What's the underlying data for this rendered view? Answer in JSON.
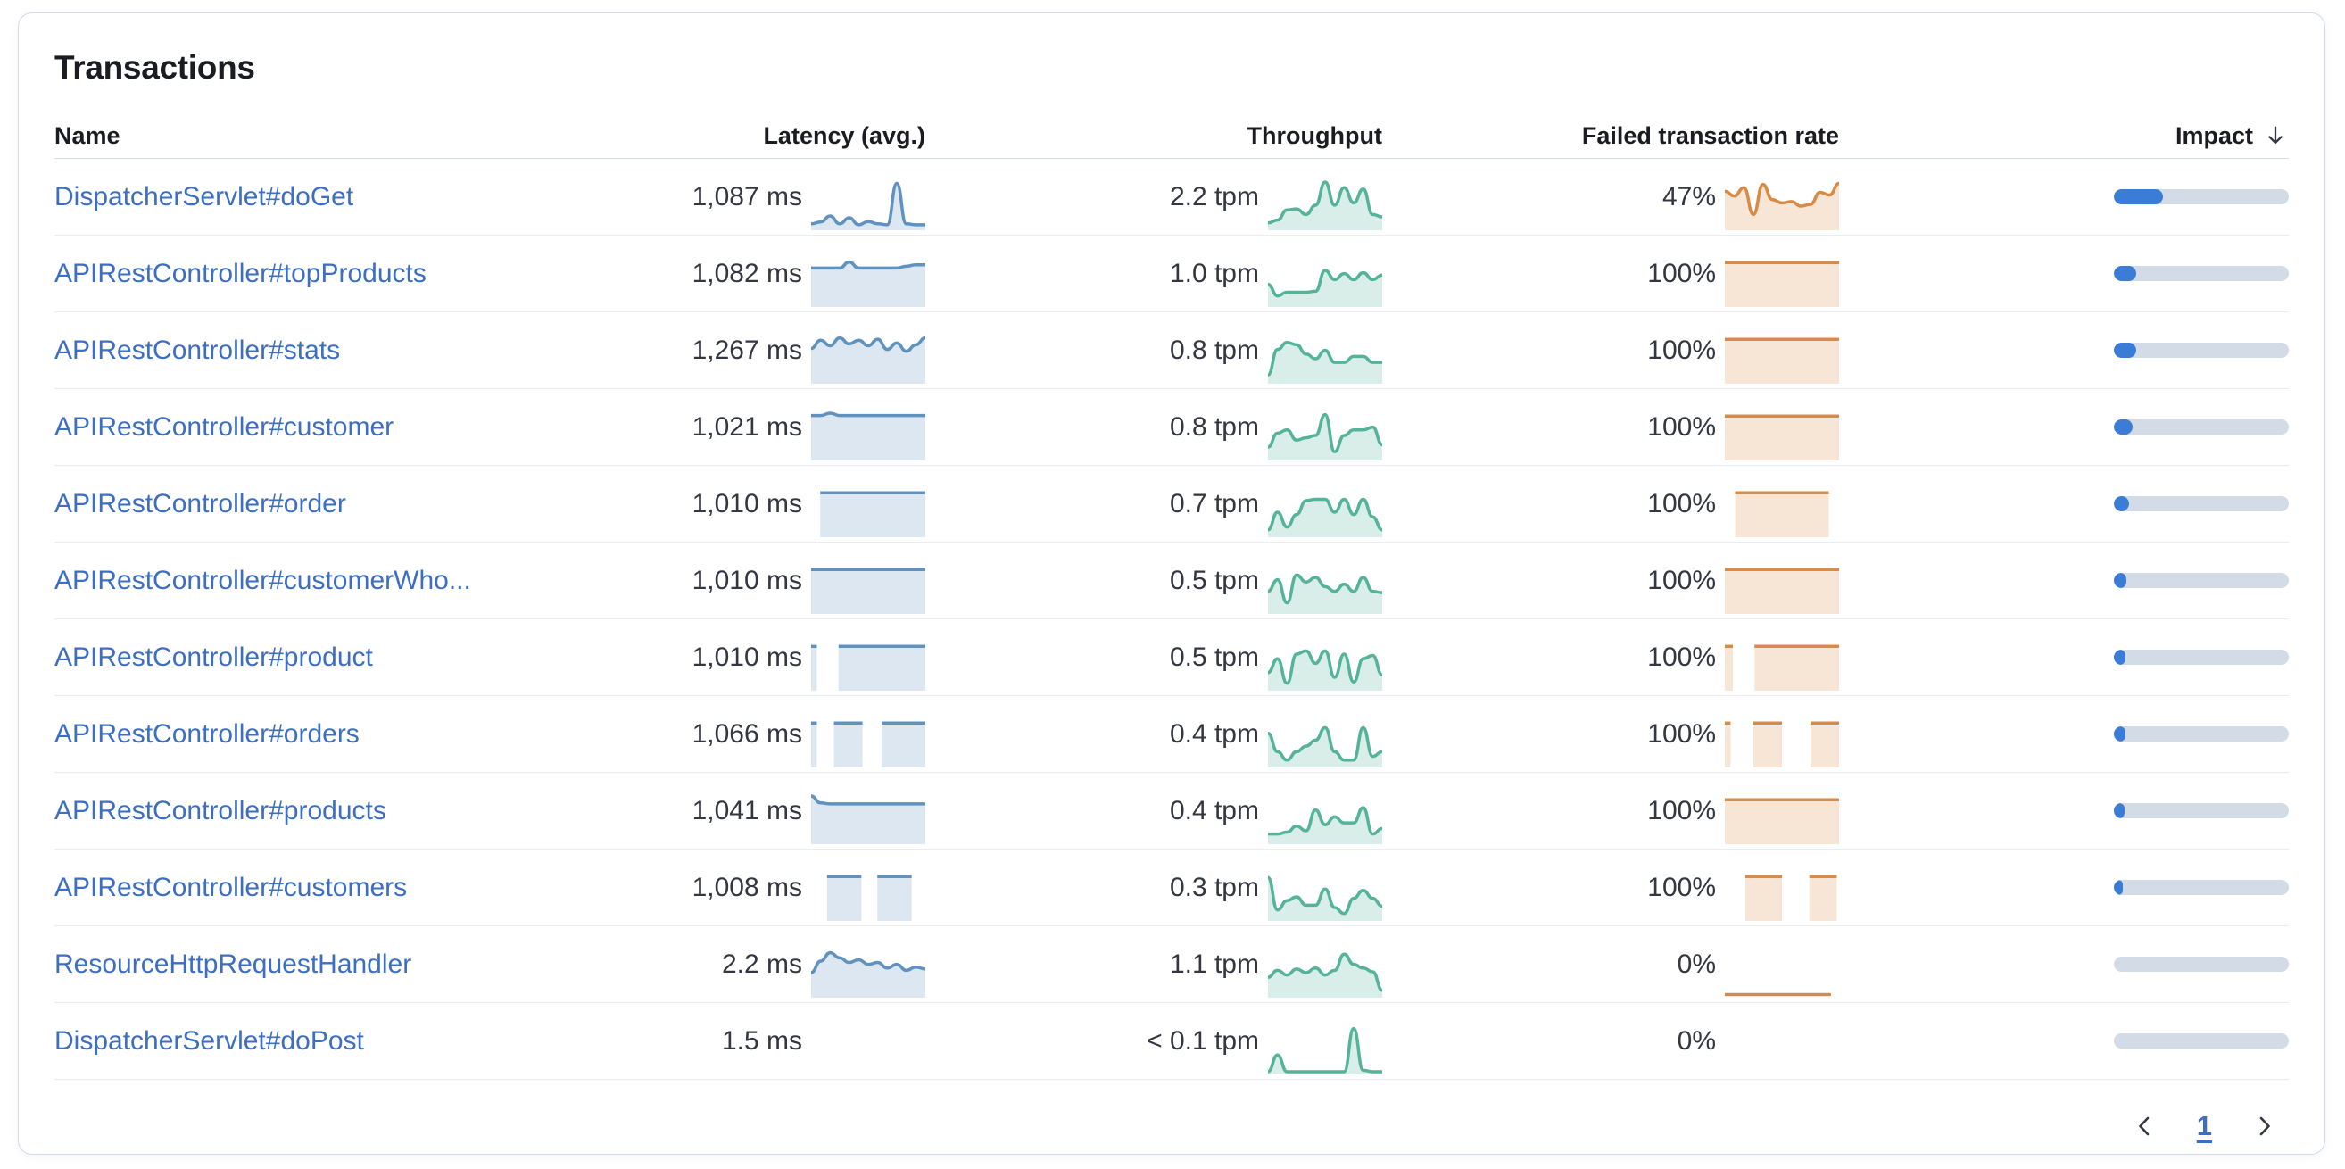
{
  "title": "Transactions",
  "columns": {
    "name": "Name",
    "latency": "Latency (avg.)",
    "throughput": "Throughput",
    "failed": "Failed transaction rate",
    "impact": "Impact"
  },
  "sort": {
    "column": "impact",
    "direction": "desc"
  },
  "colors": {
    "latency": "#6092c0",
    "throughput": "#54b399",
    "failed": "#d98a45",
    "impact_fill": "#3b7cd6",
    "impact_track": "#d3dbe6",
    "link": "#3c6ec2",
    "text": "#343741",
    "heading": "#1a1c21"
  },
  "rows": [
    {
      "name": "DispatcherServlet#doGet",
      "latency": "1,087 ms",
      "latency_spark": {
        "kind": "line",
        "values": [
          0.1,
          0.14,
          0.27,
          0.1,
          0.23,
          0.08,
          0.15,
          0.1,
          0.08,
          0.97,
          0.1,
          0.08,
          0.08
        ]
      },
      "throughput": "2.2 tpm",
      "throughput_spark": {
        "kind": "line",
        "values": [
          0.12,
          0.18,
          0.4,
          0.42,
          0.3,
          0.5,
          1.0,
          0.5,
          0.88,
          0.55,
          0.85,
          0.3,
          0.25
        ]
      },
      "failed_rate": "47%",
      "failed_spark": {
        "kind": "line",
        "values": [
          0.8,
          0.7,
          0.88,
          0.3,
          0.95,
          0.62,
          0.55,
          0.58,
          0.48,
          0.52,
          0.78,
          0.72,
          0.97
        ]
      },
      "impact_pct": 28
    },
    {
      "name": "APIRestController#topProducts",
      "latency": "1,082 ms",
      "latency_spark": {
        "kind": "line",
        "values": [
          0.8,
          0.8,
          0.8,
          0.8,
          0.93,
          0.8,
          0.8,
          0.8,
          0.8,
          0.8,
          0.84,
          0.87,
          0.87
        ]
      },
      "throughput": "1.0 tpm",
      "throughput_spark": {
        "kind": "line",
        "values": [
          0.45,
          0.2,
          0.28,
          0.28,
          0.28,
          0.3,
          0.75,
          0.55,
          0.68,
          0.55,
          0.7,
          0.55,
          0.65
        ]
      },
      "failed_rate": "100%",
      "failed_spark": {
        "kind": "blocks",
        "level": 0.95,
        "segments": [
          [
            0,
            1
          ]
        ]
      },
      "impact_pct": 13
    },
    {
      "name": "APIRestController#stats",
      "latency": "1,267 ms",
      "latency_spark": {
        "kind": "line",
        "values": [
          0.72,
          0.9,
          0.78,
          0.95,
          0.82,
          0.9,
          0.78,
          0.92,
          0.7,
          0.84,
          0.66,
          0.8,
          0.95
        ]
      },
      "throughput": "0.8 tpm",
      "throughput_spark": {
        "kind": "line",
        "values": [
          0.15,
          0.7,
          0.85,
          0.8,
          0.6,
          0.5,
          0.68,
          0.42,
          0.42,
          0.55,
          0.55,
          0.42,
          0.42
        ]
      },
      "failed_rate": "100%",
      "failed_spark": {
        "kind": "blocks",
        "level": 0.95,
        "segments": [
          [
            0,
            1
          ]
        ]
      },
      "impact_pct": 12.5
    },
    {
      "name": "APIRestController#customer",
      "latency": "1,021 ms",
      "latency_spark": {
        "kind": "line",
        "values": [
          0.93,
          0.93,
          0.98,
          0.93,
          0.93,
          0.93,
          0.93,
          0.93,
          0.93,
          0.93,
          0.93,
          0.93,
          0.93
        ]
      },
      "throughput": "0.8 tpm",
      "throughput_spark": {
        "kind": "line",
        "values": [
          0.25,
          0.55,
          0.62,
          0.4,
          0.45,
          0.5,
          0.95,
          0.15,
          0.5,
          0.62,
          0.62,
          0.68,
          0.3
        ]
      },
      "failed_rate": "100%",
      "failed_spark": {
        "kind": "blocks",
        "level": 0.95,
        "segments": [
          [
            0,
            1
          ]
        ]
      },
      "impact_pct": 10.5
    },
    {
      "name": "APIRestController#order",
      "latency": "1,010 ms",
      "latency_spark": {
        "kind": "blocks",
        "level": 0.95,
        "segments": [
          [
            0.08,
            1
          ]
        ]
      },
      "throughput": "0.7 tpm",
      "throughput_spark": {
        "kind": "line",
        "values": [
          0.12,
          0.5,
          0.18,
          0.45,
          0.75,
          0.78,
          0.78,
          0.5,
          0.78,
          0.45,
          0.78,
          0.4,
          0.12
        ]
      },
      "failed_rate": "100%",
      "failed_spark": {
        "kind": "blocks",
        "level": 0.95,
        "segments": [
          [
            0.09,
            0.91
          ]
        ]
      },
      "impact_pct": 8.5
    },
    {
      "name": "APIRestController#customerWho...",
      "latency": "1,010 ms",
      "latency_spark": {
        "kind": "blocks",
        "level": 0.95,
        "segments": [
          [
            0,
            1
          ]
        ]
      },
      "throughput": "0.5 tpm",
      "throughput_spark": {
        "kind": "line",
        "values": [
          0.45,
          0.7,
          0.2,
          0.8,
          0.65,
          0.75,
          0.55,
          0.45,
          0.6,
          0.45,
          0.75,
          0.45,
          0.42
        ]
      },
      "failed_rate": "100%",
      "failed_spark": {
        "kind": "blocks",
        "level": 0.95,
        "segments": [
          [
            0,
            1
          ]
        ]
      },
      "impact_pct": 7
    },
    {
      "name": "APIRestController#product",
      "latency": "1,010 ms",
      "latency_spark": {
        "kind": "blocks",
        "level": 0.95,
        "segments": [
          [
            0,
            0.05
          ],
          [
            0.24,
            1
          ]
        ]
      },
      "throughput": "0.5 tpm",
      "throughput_spark": {
        "kind": "line",
        "values": [
          0.35,
          0.65,
          0.12,
          0.75,
          0.82,
          0.55,
          0.82,
          0.25,
          0.75,
          0.15,
          0.65,
          0.72,
          0.3
        ]
      },
      "failed_rate": "100%",
      "failed_spark": {
        "kind": "blocks",
        "level": 0.95,
        "segments": [
          [
            0,
            0.07
          ],
          [
            0.26,
            1
          ]
        ]
      },
      "impact_pct": 6.8
    },
    {
      "name": "APIRestController#orders",
      "latency": "1,066 ms",
      "latency_spark": {
        "kind": "blocks",
        "level": 0.95,
        "segments": [
          [
            0,
            0.05
          ],
          [
            0.2,
            0.45
          ],
          [
            0.62,
            1
          ]
        ]
      },
      "throughput": "0.4 tpm",
      "throughput_spark": {
        "kind": "line",
        "values": [
          0.7,
          0.3,
          0.12,
          0.3,
          0.42,
          0.55,
          0.82,
          0.3,
          0.12,
          0.12,
          0.82,
          0.2,
          0.3
        ]
      },
      "failed_rate": "100%",
      "failed_spark": {
        "kind": "blocks",
        "level": 0.95,
        "segments": [
          [
            0,
            0.05
          ],
          [
            0.25,
            0.5
          ],
          [
            0.75,
            1
          ]
        ]
      },
      "impact_pct": 6.4
    },
    {
      "name": "APIRestController#products",
      "latency": "1,041 ms",
      "latency_spark": {
        "kind": "line",
        "values": [
          1.0,
          0.85,
          0.83,
          0.83,
          0.83,
          0.83,
          0.83,
          0.83,
          0.83,
          0.83,
          0.83,
          0.83,
          0.83
        ]
      },
      "throughput": "0.4 tpm",
      "throughput_spark": {
        "kind": "line",
        "values": [
          0.18,
          0.18,
          0.22,
          0.35,
          0.25,
          0.7,
          0.38,
          0.55,
          0.42,
          0.42,
          0.75,
          0.18,
          0.3
        ]
      },
      "failed_rate": "100%",
      "failed_spark": {
        "kind": "blocks",
        "level": 0.95,
        "segments": [
          [
            0,
            1
          ]
        ]
      },
      "impact_pct": 6
    },
    {
      "name": "APIRestController#customers",
      "latency": "1,008 ms",
      "latency_spark": {
        "kind": "blocks",
        "level": 0.95,
        "segments": [
          [
            0.14,
            0.44
          ],
          [
            0.58,
            0.88
          ]
        ]
      },
      "throughput": "0.3 tpm",
      "throughput_spark": {
        "kind": "line",
        "values": [
          0.9,
          0.2,
          0.4,
          0.48,
          0.3,
          0.3,
          0.65,
          0.25,
          0.12,
          0.45,
          0.62,
          0.45,
          0.28
        ]
      },
      "failed_rate": "100%",
      "failed_spark": {
        "kind": "blocks",
        "level": 0.95,
        "segments": [
          [
            0.18,
            0.5
          ],
          [
            0.74,
            0.98
          ]
        ]
      },
      "impact_pct": 5
    },
    {
      "name": "ResourceHttpRequestHandler",
      "latency": "2.2 ms",
      "latency_spark": {
        "kind": "line",
        "values": [
          0.5,
          0.75,
          0.93,
          0.82,
          0.72,
          0.78,
          0.68,
          0.72,
          0.6,
          0.68,
          0.55,
          0.62,
          0.58
        ]
      },
      "throughput": "1.1 tpm",
      "throughput_spark": {
        "kind": "line",
        "values": [
          0.4,
          0.55,
          0.45,
          0.58,
          0.5,
          0.6,
          0.45,
          0.55,
          0.9,
          0.68,
          0.6,
          0.52,
          0.12
        ]
      },
      "failed_rate": "0%",
      "failed_spark": {
        "kind": "line",
        "noFill": true,
        "values": [
          0.03,
          0.03,
          0.03,
          0.03,
          0.03,
          0.03,
          0.03,
          0.03,
          0.03,
          0.03,
          0.03,
          0.03,
          null
        ]
      },
      "impact_pct": 0
    },
    {
      "name": "DispatcherServlet#doPost",
      "latency": "1.5 ms",
      "latency_spark": {
        "kind": "none"
      },
      "throughput": "< 0.1 tpm",
      "throughput_spark": {
        "kind": "line",
        "values": [
          0.02,
          0.38,
          0.02,
          0.02,
          0.02,
          0.02,
          0.02,
          0.02,
          0.02,
          0.95,
          0.05,
          0.02,
          0.02
        ]
      },
      "failed_rate": "0%",
      "failed_spark": {
        "kind": "none"
      },
      "impact_pct": 0
    }
  ],
  "pagination": {
    "page": "1"
  }
}
